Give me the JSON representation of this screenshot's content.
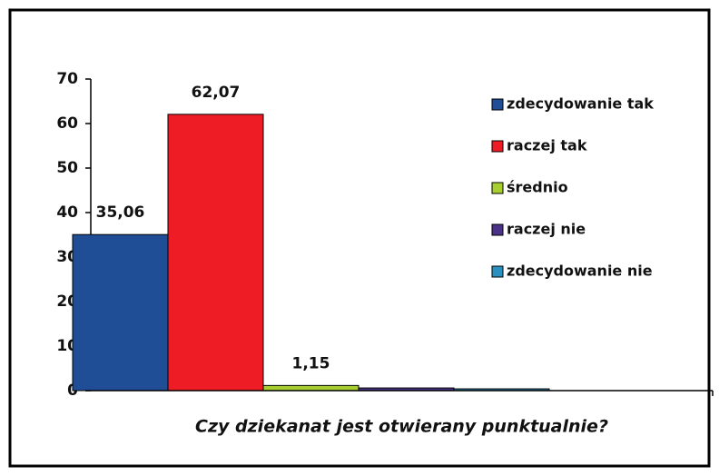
{
  "chart_data": {
    "type": "bar",
    "categories": [
      "Czy dziekanat jest otwierany punktualnie?"
    ],
    "series": [
      {
        "name": "zdecydowanie tak",
        "color": "#1f4e96",
        "values": [
          35.06
        ],
        "value_labels": [
          "35,06"
        ]
      },
      {
        "name": "raczej tak",
        "color": "#ee1c25",
        "values": [
          62.07
        ],
        "value_labels": [
          "62,07"
        ]
      },
      {
        "name": "średnio",
        "color": "#a6cf2f",
        "values": [
          1.15
        ],
        "value_labels": [
          "1,15"
        ]
      },
      {
        "name": "raczej nie",
        "color": "#4b3289",
        "values": [
          0.6
        ]
      },
      {
        "name": "zdecydowanie nie",
        "color": "#2b8fc0",
        "values": [
          0.4
        ]
      }
    ],
    "ylim": [
      0,
      70
    ],
    "yticks": [
      0,
      10,
      20,
      30,
      40,
      50,
      60,
      70
    ],
    "grid": false,
    "legend": "right"
  }
}
